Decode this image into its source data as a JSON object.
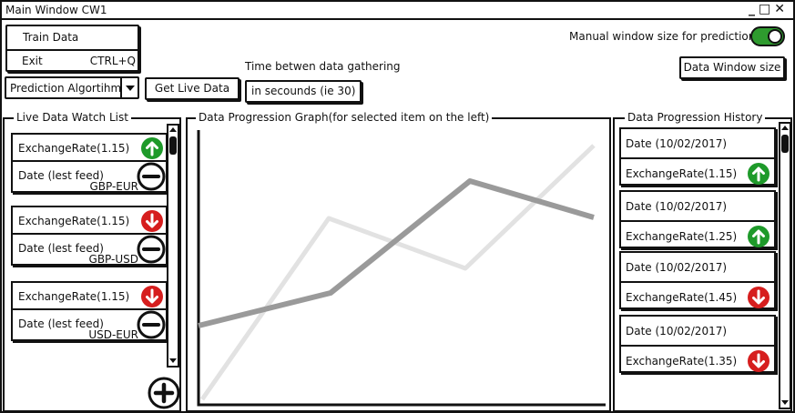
{
  "window": {
    "title": "Main Window CW1",
    "controls": [
      "_",
      "□",
      "✕"
    ]
  },
  "menu": {
    "items": [
      {
        "label": "Train Data",
        "shortcut": ""
      },
      {
        "label": "Exit",
        "shortcut": "CTRL+Q"
      }
    ]
  },
  "toolbar": {
    "prediction_select": "Prediction Algortihm",
    "get_live_data": "Get Live Data",
    "gather_label": "Time betwen data gathering",
    "gather_placeholder": "in secounds (ie 30)",
    "manual_label": "Manual window size for prediction",
    "manual_toggle_on": true,
    "data_window_button": "Data Window size"
  },
  "watch_list": {
    "title": "Live Data Watch List",
    "items": [
      {
        "rate": "ExchangeRate(1.15)",
        "date": "Date (lest feed)",
        "pair": "GBP-EUR",
        "trend": "up"
      },
      {
        "rate": "ExchangeRate(1.15)",
        "date": "Date (lest feed)",
        "pair": "GBP-USD",
        "trend": "down"
      },
      {
        "rate": "ExchangeRate(1.15)",
        "date": "Date (lest feed)",
        "pair": "USD-EUR",
        "trend": "down"
      }
    ]
  },
  "graph": {
    "title": "Data Progression Graph(for selected item on the left)"
  },
  "history": {
    "title": "Data Progression History",
    "items": [
      {
        "date": "Date (10/02/2017)",
        "rate": "ExchangeRate(1.15)",
        "trend": "up"
      },
      {
        "date": "Date (10/02/2017)",
        "rate": "ExchangeRate(1.25)",
        "trend": "up"
      },
      {
        "date": "Date (10/02/2017)",
        "rate": "ExchangeRate(1.45)",
        "trend": "down"
      },
      {
        "date": "Date (10/02/2017)",
        "rate": "ExchangeRate(1.35)",
        "trend": "down"
      }
    ]
  },
  "colors": {
    "up": "#1e9a2a",
    "down": "#d61e1e",
    "toggle": "#2e9b2e"
  }
}
